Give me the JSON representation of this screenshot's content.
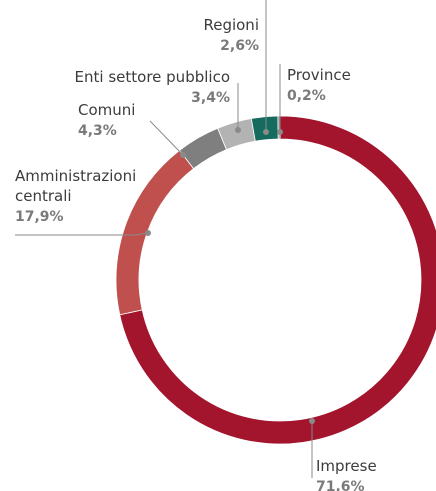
{
  "chart_data": {
    "type": "pie",
    "donut": true,
    "categories": [
      "Imprese",
      "Amministrazioni centrali",
      "Comuni",
      "Enti settore pubblico",
      "Regioni",
      "Province"
    ],
    "values": [
      71.6,
      17.9,
      4.3,
      3.4,
      2.6,
      0.2
    ],
    "series": [
      {
        "values": [
          71.6,
          17.9,
          4.3,
          3.4,
          2.6,
          0.2
        ],
        "colors": [
          "#a3142d",
          "#c0504d",
          "#7f7f7f",
          "#b3b3b3",
          "#156b5e",
          "#8a8a8a"
        ]
      }
    ],
    "labels": [
      {
        "name_lines": [
          "Imprese"
        ],
        "value": "71,6%"
      },
      {
        "name_lines": [
          "Amministrazioni",
          "centrali"
        ],
        "value": "17,9%"
      },
      {
        "name_lines": [
          "Comuni"
        ],
        "value": "4,3%"
      },
      {
        "name_lines": [
          "Enti settore pubblico"
        ],
        "value": "3,4%"
      },
      {
        "name_lines": [
          "Regioni"
        ],
        "value": "2,6%"
      },
      {
        "name_lines": [
          "Province"
        ],
        "value": "0,2%"
      }
    ],
    "start_angle": "top, clockwise",
    "title": "",
    "legend": "none"
  }
}
